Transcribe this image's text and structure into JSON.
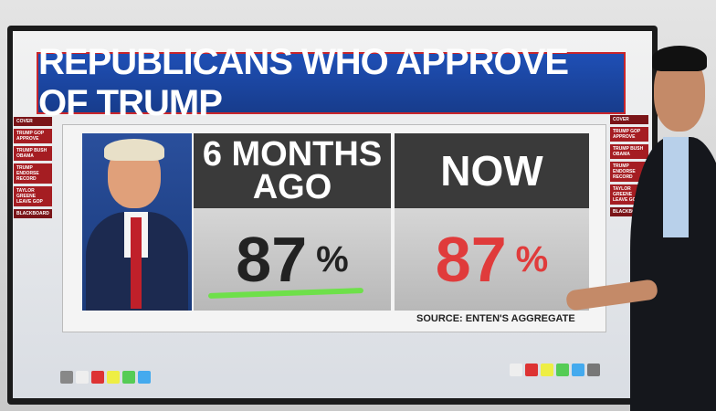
{
  "header": {
    "title": "REPUBLICANS WHO APPROVE OF TRUMP"
  },
  "panels": [
    {
      "heading": "6 MONTHS AGO",
      "value": "87",
      "unit": "%"
    },
    {
      "heading": "NOW",
      "value": "87",
      "unit": "%"
    }
  ],
  "source": "SOURCE: ENTEN'S AGGREGATE",
  "left_menu": [
    "COVER",
    "TRUMP GOP APPROVE",
    "TRUMP BUSH OBAMA",
    "TRUMP ENDORSE RECORD",
    "TAYLOR GREENE LEAVE GOP",
    "BLACKBOARD"
  ],
  "right_menu": [
    "COVER",
    "TRUMP GOP APPROVE",
    "TRUMP BUSH OBAMA",
    "TRUMP ENDORSE RECORD",
    "TAYLOR GREENE LEAVE GOP",
    "BLACKBOARD"
  ]
}
